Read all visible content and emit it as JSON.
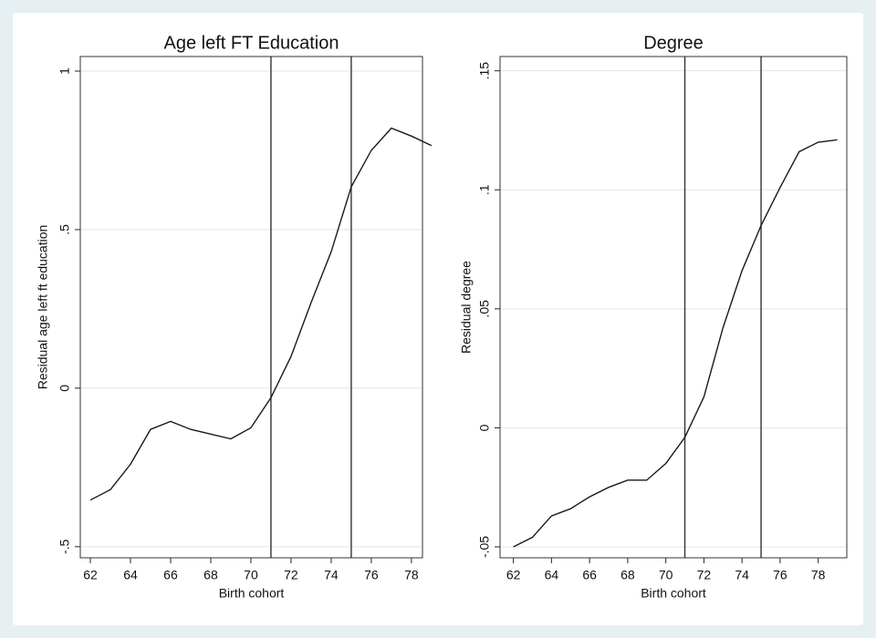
{
  "chart_data": [
    {
      "type": "line",
      "title": "Age left FT Education",
      "xlabel": "Birth cohort",
      "ylabel": "Residual age left ft education",
      "x": [
        62,
        63,
        64,
        65,
        66,
        67,
        68,
        69,
        70,
        71,
        72,
        73,
        74,
        75,
        76,
        77,
        78,
        79
      ],
      "values": [
        -0.353,
        -0.32,
        -0.24,
        -0.13,
        -0.105,
        -0.13,
        -0.145,
        -0.16,
        -0.125,
        -0.03,
        0.1,
        0.27,
        0.43,
        0.635,
        0.75,
        0.82,
        0.795,
        0.765
      ],
      "color": "#1a1a1a",
      "xlim": [
        61.5,
        78.55
      ],
      "xticks": [
        62,
        64,
        66,
        68,
        70,
        72,
        74,
        76,
        78
      ],
      "ylim": [
        -0.535,
        1.046
      ],
      "yticks": [
        {
          "value": -0.5,
          "label": "-.5"
        },
        0,
        {
          "value": 0.5,
          "label": ".5"
        },
        1
      ],
      "vlines": [
        71,
        75
      ],
      "grid": true
    },
    {
      "type": "line",
      "title": "Degree",
      "xlabel": "Birth cohort",
      "ylabel": "Residual degree",
      "x": [
        62,
        63,
        64,
        65,
        66,
        67,
        68,
        69,
        70,
        71,
        72,
        73,
        74,
        75,
        76,
        77,
        78,
        79
      ],
      "values": [
        -0.05,
        -0.046,
        -0.037,
        -0.034,
        -0.029,
        -0.025,
        -0.022,
        -0.022,
        -0.015,
        -0.004,
        0.013,
        0.042,
        0.066,
        0.085,
        0.101,
        0.116,
        0.12,
        0.121
      ],
      "color": "#1a1a1a",
      "xlim": [
        61.3,
        79.5
      ],
      "xticks": [
        62,
        64,
        66,
        68,
        70,
        72,
        74,
        76,
        78
      ],
      "ylim": [
        -0.0546,
        0.156
      ],
      "yticks": [
        {
          "value": -0.05,
          "label": "-.05"
        },
        0,
        {
          "value": 0.05,
          "label": ".05"
        },
        {
          "value": 0.1,
          "label": ".1"
        },
        {
          "value": 0.15,
          "label": ".15"
        }
      ],
      "vlines": [
        71,
        75
      ],
      "grid": true
    }
  ]
}
